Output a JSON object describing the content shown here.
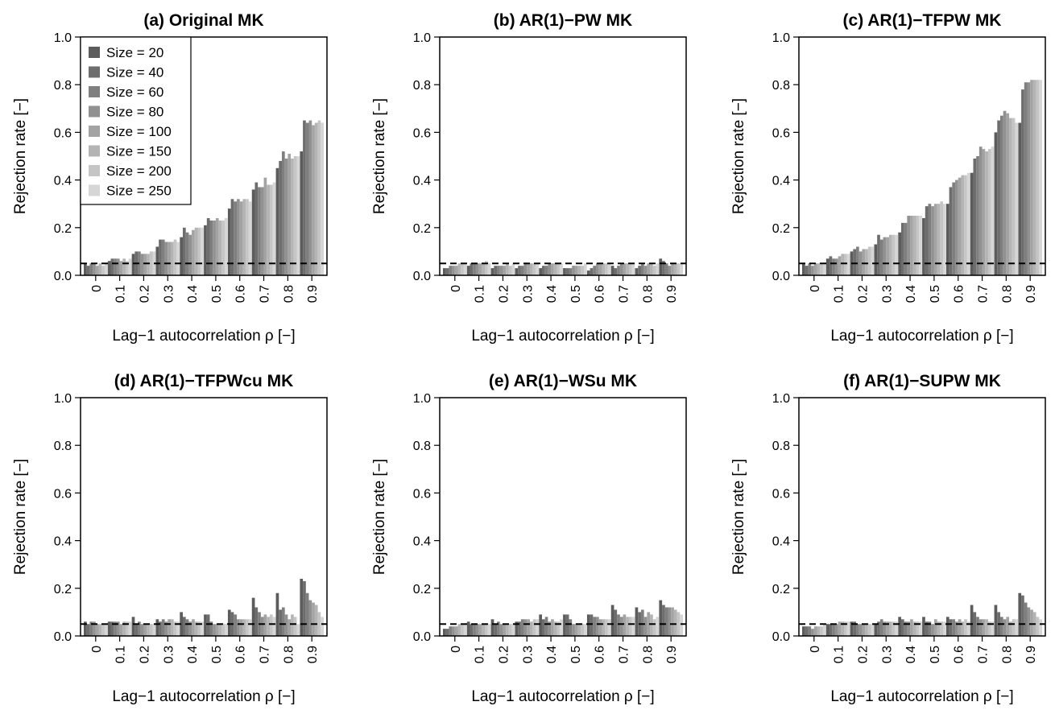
{
  "series_colors": [
    "#5c5c5c",
    "#6d6d6d",
    "#7f7f7f",
    "#919191",
    "#a3a3a3",
    "#b4b4b4",
    "#c5c5c5",
    "#d6d6d6"
  ],
  "chart_data": [
    {
      "type": "bar",
      "title": "(a) Original MK",
      "xlabel": "Lag−1 autocorrelation ρ [−]",
      "ylabel": "Rejection rate [−]",
      "ylim": [
        0,
        1
      ],
      "yticks": [
        "0.0",
        "0.2",
        "0.4",
        "0.6",
        "0.8",
        "1.0"
      ],
      "reference_line": 0.05,
      "legend": "top-left",
      "categories": [
        "0",
        "0.1",
        "0.2",
        "0.3",
        "0.4",
        "0.5",
        "0.6",
        "0.7",
        "0.8",
        "0.9"
      ],
      "series": [
        {
          "name": "Size = 20",
          "values": [
            0.05,
            0.06,
            0.09,
            0.12,
            0.16,
            0.21,
            0.28,
            0.36,
            0.45,
            0.52
          ]
        },
        {
          "name": "Size = 40",
          "values": [
            0.04,
            0.07,
            0.1,
            0.15,
            0.2,
            0.24,
            0.32,
            0.39,
            0.48,
            0.65
          ]
        },
        {
          "name": "Size = 60",
          "values": [
            0.05,
            0.07,
            0.1,
            0.15,
            0.18,
            0.23,
            0.31,
            0.37,
            0.52,
            0.64
          ]
        },
        {
          "name": "Size = 80",
          "values": [
            0.05,
            0.07,
            0.09,
            0.14,
            0.17,
            0.23,
            0.32,
            0.37,
            0.49,
            0.65
          ]
        },
        {
          "name": "Size = 100",
          "values": [
            0.04,
            0.06,
            0.09,
            0.14,
            0.19,
            0.24,
            0.31,
            0.41,
            0.51,
            0.63
          ]
        },
        {
          "name": "Size = 150",
          "values": [
            0.05,
            0.07,
            0.09,
            0.14,
            0.2,
            0.23,
            0.32,
            0.38,
            0.49,
            0.64
          ]
        },
        {
          "name": "Size = 200",
          "values": [
            0.04,
            0.06,
            0.1,
            0.15,
            0.2,
            0.23,
            0.32,
            0.38,
            0.5,
            0.65
          ]
        },
        {
          "name": "Size = 250",
          "values": [
            0.05,
            0.07,
            0.1,
            0.14,
            0.2,
            0.24,
            0.31,
            0.39,
            0.5,
            0.64
          ]
        }
      ]
    },
    {
      "type": "bar",
      "title": "(b) AR(1)−PW MK",
      "xlabel": "Lag−1 autocorrelation ρ [−]",
      "ylabel": "Rejection rate [−]",
      "ylim": [
        0,
        1
      ],
      "yticks": [
        "0.0",
        "0.2",
        "0.4",
        "0.6",
        "0.8",
        "1.0"
      ],
      "reference_line": 0.05,
      "categories": [
        "0",
        "0.1",
        "0.2",
        "0.3",
        "0.4",
        "0.5",
        "0.6",
        "0.7",
        "0.8",
        "0.9"
      ],
      "series": [
        {
          "name": "Size = 20",
          "values": [
            0.03,
            0.04,
            0.03,
            0.03,
            0.03,
            0.03,
            0.02,
            0.04,
            0.03,
            0.07
          ]
        },
        {
          "name": "Size = 40",
          "values": [
            0.03,
            0.05,
            0.04,
            0.04,
            0.04,
            0.03,
            0.03,
            0.03,
            0.04,
            0.06
          ]
        },
        {
          "name": "Size = 60",
          "values": [
            0.04,
            0.05,
            0.04,
            0.04,
            0.04,
            0.03,
            0.04,
            0.04,
            0.05,
            0.05
          ]
        },
        {
          "name": "Size = 80",
          "values": [
            0.04,
            0.05,
            0.04,
            0.05,
            0.05,
            0.04,
            0.05,
            0.05,
            0.04,
            0.04
          ]
        },
        {
          "name": "Size = 100",
          "values": [
            0.04,
            0.05,
            0.04,
            0.05,
            0.05,
            0.04,
            0.05,
            0.05,
            0.05,
            0.05
          ]
        },
        {
          "name": "Size = 150",
          "values": [
            0.05,
            0.05,
            0.05,
            0.05,
            0.05,
            0.04,
            0.05,
            0.05,
            0.05,
            0.05
          ]
        },
        {
          "name": "Size = 200",
          "values": [
            0.05,
            0.06,
            0.04,
            0.05,
            0.05,
            0.04,
            0.05,
            0.05,
            0.04,
            0.05
          ]
        },
        {
          "name": "Size = 250",
          "values": [
            0.05,
            0.05,
            0.05,
            0.05,
            0.05,
            0.05,
            0.05,
            0.05,
            0.05,
            0.05
          ]
        }
      ]
    },
    {
      "type": "bar",
      "title": "(c) AR(1)−TFPW MK",
      "xlabel": "Lag−1 autocorrelation ρ [−]",
      "ylabel": "Rejection rate [−]",
      "ylim": [
        0,
        1
      ],
      "yticks": [
        "0.0",
        "0.2",
        "0.4",
        "0.6",
        "0.8",
        "1.0"
      ],
      "reference_line": 0.05,
      "categories": [
        "0",
        "0.1",
        "0.2",
        "0.3",
        "0.4",
        "0.5",
        "0.6",
        "0.7",
        "0.8",
        "0.9"
      ],
      "series": [
        {
          "name": "Size = 20",
          "values": [
            0.05,
            0.07,
            0.1,
            0.13,
            0.18,
            0.24,
            0.3,
            0.43,
            0.6,
            0.64
          ]
        },
        {
          "name": "Size = 40",
          "values": [
            0.04,
            0.08,
            0.11,
            0.17,
            0.22,
            0.29,
            0.37,
            0.49,
            0.65,
            0.78
          ]
        },
        {
          "name": "Size = 60",
          "values": [
            0.05,
            0.07,
            0.12,
            0.15,
            0.22,
            0.3,
            0.39,
            0.5,
            0.67,
            0.81
          ]
        },
        {
          "name": "Size = 80",
          "values": [
            0.04,
            0.07,
            0.1,
            0.16,
            0.25,
            0.29,
            0.4,
            0.54,
            0.69,
            0.81
          ]
        },
        {
          "name": "Size = 100",
          "values": [
            0.05,
            0.08,
            0.11,
            0.16,
            0.25,
            0.3,
            0.41,
            0.53,
            0.68,
            0.82
          ]
        },
        {
          "name": "Size = 150",
          "values": [
            0.05,
            0.09,
            0.11,
            0.17,
            0.25,
            0.3,
            0.42,
            0.52,
            0.66,
            0.82
          ]
        },
        {
          "name": "Size = 200",
          "values": [
            0.05,
            0.09,
            0.12,
            0.17,
            0.25,
            0.31,
            0.42,
            0.53,
            0.66,
            0.82
          ]
        },
        {
          "name": "Size = 250",
          "values": [
            0.05,
            0.09,
            0.12,
            0.17,
            0.25,
            0.3,
            0.43,
            0.54,
            0.64,
            0.82
          ]
        }
      ]
    },
    {
      "type": "bar",
      "title": "(d) AR(1)−TFPWcu MK",
      "xlabel": "Lag−1 autocorrelation ρ [−]",
      "ylabel": "Rejection rate [−]",
      "ylim": [
        0,
        1
      ],
      "yticks": [
        "0.0",
        "0.2",
        "0.4",
        "0.6",
        "0.8",
        "1.0"
      ],
      "reference_line": 0.05,
      "categories": [
        "0",
        "0.1",
        "0.2",
        "0.3",
        "0.4",
        "0.5",
        "0.6",
        "0.7",
        "0.8",
        "0.9"
      ],
      "series": [
        {
          "name": "Size = 20",
          "values": [
            0.06,
            0.06,
            0.08,
            0.07,
            0.1,
            0.09,
            0.11,
            0.16,
            0.18,
            0.24
          ]
        },
        {
          "name": "Size = 40",
          "values": [
            0.05,
            0.06,
            0.05,
            0.06,
            0.08,
            0.09,
            0.1,
            0.12,
            0.11,
            0.23
          ]
        },
        {
          "name": "Size = 60",
          "values": [
            0.06,
            0.06,
            0.06,
            0.07,
            0.07,
            0.06,
            0.09,
            0.1,
            0.12,
            0.18
          ]
        },
        {
          "name": "Size = 80",
          "values": [
            0.06,
            0.06,
            0.05,
            0.06,
            0.06,
            0.05,
            0.07,
            0.08,
            0.09,
            0.15
          ]
        },
        {
          "name": "Size = 100",
          "values": [
            0.05,
            0.05,
            0.05,
            0.07,
            0.07,
            0.05,
            0.07,
            0.09,
            0.07,
            0.14
          ]
        },
        {
          "name": "Size = 150",
          "values": [
            0.05,
            0.06,
            0.05,
            0.07,
            0.06,
            0.05,
            0.07,
            0.08,
            0.09,
            0.13
          ]
        },
        {
          "name": "Size = 200",
          "values": [
            0.05,
            0.06,
            0.05,
            0.06,
            0.06,
            0.05,
            0.07,
            0.09,
            0.08,
            0.1
          ]
        },
        {
          "name": "Size = 250",
          "values": [
            0.05,
            0.06,
            0.05,
            0.06,
            0.06,
            0.05,
            0.07,
            0.08,
            0.05,
            0.08
          ]
        }
      ]
    },
    {
      "type": "bar",
      "title": "(e) AR(1)−WSu MK",
      "xlabel": "Lag−1 autocorrelation ρ [−]",
      "ylabel": "Rejection rate [−]",
      "ylim": [
        0,
        1
      ],
      "yticks": [
        "0.0",
        "0.2",
        "0.4",
        "0.6",
        "0.8",
        "1.0"
      ],
      "reference_line": 0.05,
      "categories": [
        "0",
        "0.1",
        "0.2",
        "0.3",
        "0.4",
        "0.5",
        "0.6",
        "0.7",
        "0.8",
        "0.9"
      ],
      "series": [
        {
          "name": "Size = 20",
          "values": [
            0.03,
            0.06,
            0.07,
            0.06,
            0.09,
            0.09,
            0.09,
            0.13,
            0.12,
            0.15
          ]
        },
        {
          "name": "Size = 40",
          "values": [
            0.03,
            0.05,
            0.05,
            0.06,
            0.07,
            0.09,
            0.09,
            0.11,
            0.1,
            0.13
          ]
        },
        {
          "name": "Size = 60",
          "values": [
            0.04,
            0.05,
            0.06,
            0.07,
            0.08,
            0.07,
            0.08,
            0.09,
            0.11,
            0.12
          ]
        },
        {
          "name": "Size = 80",
          "values": [
            0.04,
            0.05,
            0.05,
            0.07,
            0.06,
            0.05,
            0.08,
            0.08,
            0.08,
            0.12
          ]
        },
        {
          "name": "Size = 100",
          "values": [
            0.04,
            0.05,
            0.05,
            0.07,
            0.07,
            0.05,
            0.07,
            0.09,
            0.1,
            0.12
          ]
        },
        {
          "name": "Size = 150",
          "values": [
            0.05,
            0.05,
            0.05,
            0.06,
            0.06,
            0.05,
            0.07,
            0.08,
            0.09,
            0.11
          ]
        },
        {
          "name": "Size = 200",
          "values": [
            0.05,
            0.05,
            0.05,
            0.07,
            0.06,
            0.05,
            0.07,
            0.08,
            0.07,
            0.1
          ]
        },
        {
          "name": "Size = 250",
          "values": [
            0.05,
            0.05,
            0.05,
            0.07,
            0.07,
            0.05,
            0.07,
            0.08,
            0.08,
            0.09
          ]
        }
      ]
    },
    {
      "type": "bar",
      "title": "(f) AR(1)−SUPW MK",
      "xlabel": "Lag−1 autocorrelation ρ [−]",
      "ylabel": "Rejection rate [−]",
      "ylim": [
        0,
        1
      ],
      "yticks": [
        "0.0",
        "0.2",
        "0.4",
        "0.6",
        "0.8",
        "1.0"
      ],
      "reference_line": 0.05,
      "categories": [
        "0",
        "0.1",
        "0.2",
        "0.3",
        "0.4",
        "0.5",
        "0.6",
        "0.7",
        "0.8",
        "0.9"
      ],
      "series": [
        {
          "name": "Size = 20",
          "values": [
            0.04,
            0.05,
            0.06,
            0.05,
            0.08,
            0.08,
            0.08,
            0.13,
            0.13,
            0.18
          ]
        },
        {
          "name": "Size = 40",
          "values": [
            0.04,
            0.05,
            0.06,
            0.06,
            0.07,
            0.06,
            0.07,
            0.1,
            0.1,
            0.17
          ]
        },
        {
          "name": "Size = 60",
          "values": [
            0.04,
            0.05,
            0.05,
            0.07,
            0.06,
            0.06,
            0.07,
            0.08,
            0.08,
            0.14
          ]
        },
        {
          "name": "Size = 80",
          "values": [
            0.03,
            0.05,
            0.05,
            0.06,
            0.06,
            0.05,
            0.06,
            0.07,
            0.07,
            0.12
          ]
        },
        {
          "name": "Size = 100",
          "values": [
            0.04,
            0.06,
            0.05,
            0.06,
            0.07,
            0.07,
            0.07,
            0.07,
            0.08,
            0.11
          ]
        },
        {
          "name": "Size = 150",
          "values": [
            0.04,
            0.06,
            0.05,
            0.06,
            0.06,
            0.06,
            0.06,
            0.07,
            0.06,
            0.1
          ]
        },
        {
          "name": "Size = 200",
          "values": [
            0.04,
            0.06,
            0.05,
            0.06,
            0.06,
            0.06,
            0.07,
            0.06,
            0.07,
            0.08
          ]
        },
        {
          "name": "Size = 250",
          "values": [
            0.05,
            0.06,
            0.05,
            0.06,
            0.06,
            0.06,
            0.06,
            0.06,
            0.07,
            0.07
          ]
        }
      ]
    }
  ]
}
